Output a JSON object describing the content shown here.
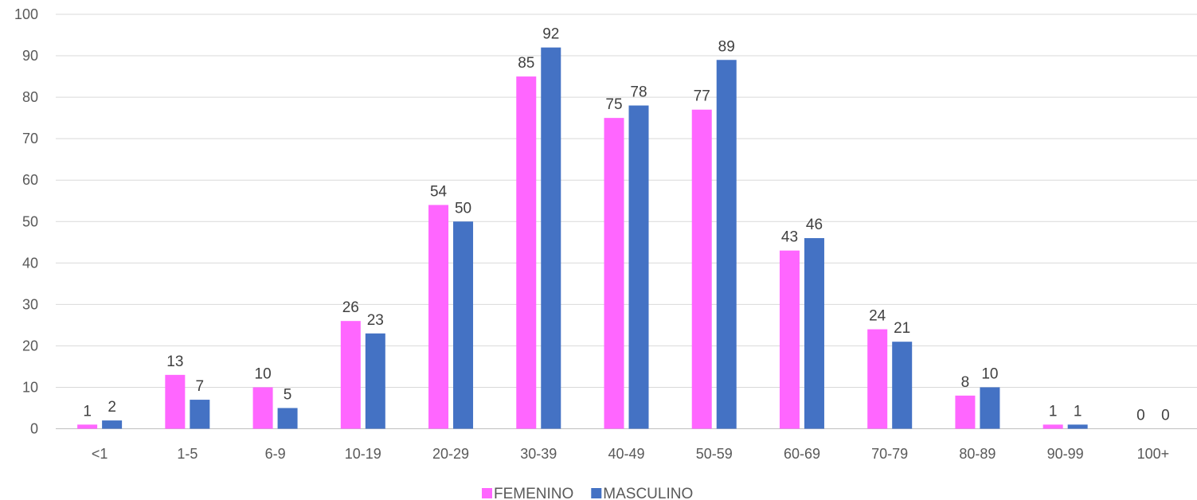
{
  "chart_data": {
    "type": "bar",
    "categories": [
      "<1",
      "1-5",
      "6-9",
      "10-19",
      "20-29",
      "30-39",
      "40-49",
      "50-59",
      "60-69",
      "70-79",
      "80-89",
      "90-99",
      "100+"
    ],
    "series": [
      {
        "name": "FEMENINO",
        "color": "#ff66ff",
        "values": [
          1,
          13,
          10,
          26,
          54,
          85,
          75,
          77,
          43,
          24,
          8,
          1,
          0
        ]
      },
      {
        "name": "MASCULINO",
        "color": "#4472c4",
        "values": [
          2,
          7,
          5,
          23,
          50,
          92,
          78,
          89,
          46,
          21,
          10,
          1,
          0
        ]
      }
    ],
    "yticks": [
      "0",
      "10",
      "20",
      "30",
      "40",
      "50",
      "60",
      "70",
      "80",
      "90",
      "100"
    ],
    "ylim": [
      0,
      100
    ],
    "grid": true,
    "legend_position": "bottom",
    "data_labels": true
  }
}
